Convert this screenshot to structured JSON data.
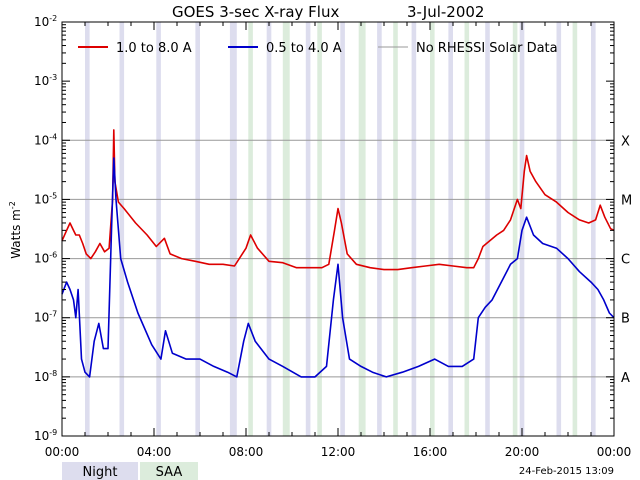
{
  "chart_data": {
    "type": "line",
    "title": "GOES 3-sec X-ray Flux",
    "date": "3-Jul-2002",
    "ylabel": "Watts m",
    "ylabel_sup": "-2",
    "yscale": "log",
    "ylim": [
      1e-09,
      0.01
    ],
    "xlim": [
      0,
      24
    ],
    "x_ticks": [
      {
        "value": 0,
        "label": "00:00"
      },
      {
        "value": 4,
        "label": "04:00"
      },
      {
        "value": 8,
        "label": "08:00"
      },
      {
        "value": 12,
        "label": "12:00"
      },
      {
        "value": 16,
        "label": "16:00"
      },
      {
        "value": 20,
        "label": "20:00"
      },
      {
        "value": 24,
        "label": "00:00"
      }
    ],
    "y_ticks": [
      {
        "exp": -2,
        "base": "10",
        "sup": "-2"
      },
      {
        "exp": -3,
        "base": "10",
        "sup": "-3"
      },
      {
        "exp": -4,
        "base": "10",
        "sup": "-4"
      },
      {
        "exp": -5,
        "base": "10",
        "sup": "-5"
      },
      {
        "exp": -6,
        "base": "10",
        "sup": "-6"
      },
      {
        "exp": -7,
        "base": "10",
        "sup": "-7"
      },
      {
        "exp": -8,
        "base": "10",
        "sup": "-8"
      },
      {
        "exp": -9,
        "base": "10",
        "sup": "-9"
      }
    ],
    "flare_classes": [
      {
        "label": "X",
        "exp": -4
      },
      {
        "label": "M",
        "exp": -5
      },
      {
        "label": "C",
        "exp": -6
      },
      {
        "label": "B",
        "exp": -7
      },
      {
        "label": "A",
        "exp": -8
      }
    ],
    "legend": [
      {
        "label": "1.0 to 8.0 A",
        "color": "#dd0000"
      },
      {
        "label": "0.5 to 4.0 A",
        "color": "#0000cc"
      },
      {
        "label": "No RHESSI Solar Data",
        "color": "#999999"
      }
    ],
    "night_intervals": [
      [
        1.0,
        1.2
      ],
      [
        2.5,
        2.7
      ],
      [
        4.1,
        4.3
      ],
      [
        5.8,
        6.0
      ],
      [
        7.3,
        7.6
      ],
      [
        8.9,
        9.1
      ],
      [
        10.6,
        10.8
      ],
      [
        12.1,
        12.3
      ],
      [
        13.7,
        13.9
      ],
      [
        15.2,
        15.4
      ],
      [
        16.8,
        17.0
      ],
      [
        18.4,
        18.6
      ],
      [
        19.9,
        20.1
      ],
      [
        21.5,
        21.7
      ],
      [
        23.0,
        23.2
      ]
    ],
    "saa_intervals": [
      [
        8.1,
        8.3
      ],
      [
        9.6,
        9.9
      ],
      [
        11.1,
        11.3
      ],
      [
        12.9,
        13.2
      ],
      [
        14.4,
        14.6
      ],
      [
        16.0,
        16.2
      ],
      [
        17.5,
        17.7
      ],
      [
        19.6,
        19.8
      ],
      [
        22.2,
        22.4
      ]
    ],
    "series": [
      {
        "name": "1.0 to 8.0 A",
        "color": "#dd0000",
        "points": [
          [
            0,
            2e-06
          ],
          [
            0.2,
            3e-06
          ],
          [
            0.35,
            4e-06
          ],
          [
            0.5,
            3e-06
          ],
          [
            0.6,
            2.5e-06
          ],
          [
            0.75,
            2.5e-06
          ],
          [
            0.9,
            1.8e-06
          ],
          [
            1.05,
            1.2e-06
          ],
          [
            1.25,
            1e-06
          ],
          [
            1.45,
            1.3e-06
          ],
          [
            1.65,
            1.8e-06
          ],
          [
            1.85,
            1.3e-06
          ],
          [
            2.05,
            1.5e-06
          ],
          [
            2.2,
            1e-05
          ],
          [
            2.25,
            0.00015
          ],
          [
            2.3,
            2e-05
          ],
          [
            2.45,
            9e-06
          ],
          [
            2.7,
            7e-06
          ],
          [
            3.2,
            4e-06
          ],
          [
            3.7,
            2.5e-06
          ],
          [
            4.1,
            1.6e-06
          ],
          [
            4.45,
            2.2e-06
          ],
          [
            4.7,
            1.2e-06
          ],
          [
            5.2,
            1e-06
          ],
          [
            5.8,
            9e-07
          ],
          [
            6.4,
            8e-07
          ],
          [
            7.0,
            8e-07
          ],
          [
            7.5,
            7.5e-07
          ],
          [
            8.0,
            1.5e-06
          ],
          [
            8.2,
            2.5e-06
          ],
          [
            8.5,
            1.5e-06
          ],
          [
            9.0,
            9e-07
          ],
          [
            9.6,
            8.5e-07
          ],
          [
            10.2,
            7e-07
          ],
          [
            10.8,
            7e-07
          ],
          [
            11.3,
            7e-07
          ],
          [
            11.6,
            8e-07
          ],
          [
            11.85,
            3e-06
          ],
          [
            12.0,
            7e-06
          ],
          [
            12.15,
            4e-06
          ],
          [
            12.4,
            1.2e-06
          ],
          [
            12.8,
            8e-07
          ],
          [
            13.4,
            7e-07
          ],
          [
            14.0,
            6.5e-07
          ],
          [
            14.6,
            6.5e-07
          ],
          [
            15.2,
            7e-07
          ],
          [
            15.8,
            7.5e-07
          ],
          [
            16.4,
            8e-07
          ],
          [
            17.0,
            7.5e-07
          ],
          [
            17.6,
            7e-07
          ],
          [
            17.9,
            7e-07
          ],
          [
            18.1,
            1e-06
          ],
          [
            18.3,
            1.6e-06
          ],
          [
            18.6,
            2e-06
          ],
          [
            18.9,
            2.5e-06
          ],
          [
            19.2,
            3e-06
          ],
          [
            19.5,
            4.5e-06
          ],
          [
            19.8,
            1e-05
          ],
          [
            19.95,
            7e-06
          ],
          [
            20.1,
            3e-05
          ],
          [
            20.2,
            5.5e-05
          ],
          [
            20.35,
            3e-05
          ],
          [
            20.6,
            2e-05
          ],
          [
            21.0,
            1.2e-05
          ],
          [
            21.5,
            9e-06
          ],
          [
            22.0,
            6e-06
          ],
          [
            22.5,
            4.5e-06
          ],
          [
            22.9,
            4e-06
          ],
          [
            23.2,
            4.5e-06
          ],
          [
            23.4,
            8e-06
          ],
          [
            23.6,
            5e-06
          ],
          [
            23.85,
            3.2e-06
          ],
          [
            24,
            3e-06
          ]
        ]
      },
      {
        "name": "0.5 to 4.0 A",
        "color": "#0000cc",
        "points": [
          [
            0,
            2.5e-07
          ],
          [
            0.2,
            4e-07
          ],
          [
            0.35,
            3e-07
          ],
          [
            0.5,
            2e-07
          ],
          [
            0.6,
            1e-07
          ],
          [
            0.7,
            3e-07
          ],
          [
            0.85,
            2e-08
          ],
          [
            1.0,
            1.2e-08
          ],
          [
            1.2,
            1e-08
          ],
          [
            1.4,
            4e-08
          ],
          [
            1.6,
            8e-08
          ],
          [
            1.8,
            3e-08
          ],
          [
            2.0,
            3e-08
          ],
          [
            2.15,
            3e-06
          ],
          [
            2.25,
            5e-05
          ],
          [
            2.35,
            1e-05
          ],
          [
            2.55,
            1e-06
          ],
          [
            2.85,
            4e-07
          ],
          [
            3.3,
            1.2e-07
          ],
          [
            3.9,
            3.5e-08
          ],
          [
            4.3,
            2e-08
          ],
          [
            4.5,
            6e-08
          ],
          [
            4.8,
            2.5e-08
          ],
          [
            5.4,
            2e-08
          ],
          [
            6.0,
            2e-08
          ],
          [
            6.6,
            1.5e-08
          ],
          [
            7.2,
            1.2e-08
          ],
          [
            7.6,
            1e-08
          ],
          [
            7.9,
            4e-08
          ],
          [
            8.1,
            8e-08
          ],
          [
            8.4,
            4e-08
          ],
          [
            9.0,
            2e-08
          ],
          [
            9.6,
            1.5e-08
          ],
          [
            10.4,
            1e-08
          ],
          [
            11.0,
            1e-08
          ],
          [
            11.5,
            1.5e-08
          ],
          [
            11.8,
            2e-07
          ],
          [
            12.0,
            8e-07
          ],
          [
            12.2,
            1e-07
          ],
          [
            12.5,
            2e-08
          ],
          [
            13.0,
            1.5e-08
          ],
          [
            13.5,
            1.2e-08
          ],
          [
            14.1,
            1e-08
          ],
          [
            14.8,
            1.2e-08
          ],
          [
            15.5,
            1.5e-08
          ],
          [
            16.2,
            2e-08
          ],
          [
            16.8,
            1.5e-08
          ],
          [
            17.4,
            1.5e-08
          ],
          [
            17.9,
            2e-08
          ],
          [
            18.1,
            1e-07
          ],
          [
            18.4,
            1.5e-07
          ],
          [
            18.7,
            2e-07
          ],
          [
            19.1,
            4e-07
          ],
          [
            19.5,
            8e-07
          ],
          [
            19.8,
            1e-06
          ],
          [
            20.0,
            3e-06
          ],
          [
            20.2,
            5e-06
          ],
          [
            20.5,
            2.5e-06
          ],
          [
            20.9,
            1.8e-06
          ],
          [
            21.5,
            1.5e-06
          ],
          [
            22.0,
            1e-06
          ],
          [
            22.5,
            6e-07
          ],
          [
            23.0,
            4e-07
          ],
          [
            23.3,
            3e-07
          ],
          [
            23.55,
            2e-07
          ],
          [
            23.8,
            1.2e-07
          ],
          [
            24,
            1e-07
          ]
        ]
      }
    ]
  },
  "footer": {
    "night_label": "Night",
    "saa_label": "SAA",
    "timestamp": "24-Feb-2015 13:09"
  },
  "colors": {
    "night": "#ddddee",
    "saa": "#dcecdc",
    "grid": "#999999"
  }
}
